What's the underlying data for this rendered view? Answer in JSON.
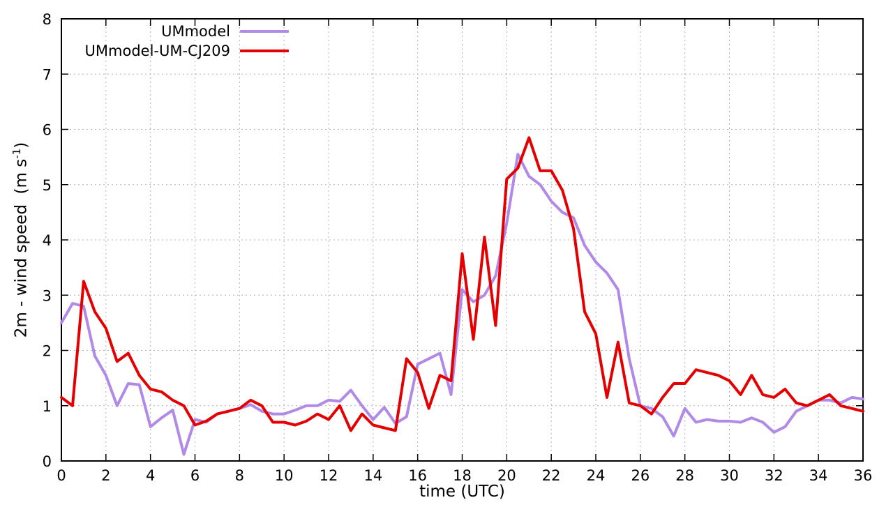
{
  "chart_data": {
    "type": "line",
    "title": "",
    "xlabel": "time (UTC)",
    "ylabel_prefix": "2m - wind speed  (m s",
    "ylabel_sup": "-1",
    "ylabel_suffix": ")",
    "xlim": [
      0,
      36
    ],
    "ylim": [
      0,
      8
    ],
    "xticks": [
      0,
      2,
      4,
      6,
      8,
      10,
      12,
      14,
      16,
      18,
      20,
      22,
      24,
      26,
      28,
      30,
      32,
      34,
      36
    ],
    "yticks": [
      0,
      1,
      2,
      3,
      4,
      5,
      6,
      7,
      8
    ],
    "grid": true,
    "grid_color": "#b0b0b0",
    "axis_color": "#000000",
    "legend_position": "top-left",
    "x_start": 0,
    "x_step": 0.5,
    "series": [
      {
        "name": "UMmodel",
        "color": "#b18ae8",
        "values": [
          2.5,
          2.85,
          2.8,
          1.9,
          1.55,
          1.0,
          1.4,
          1.38,
          0.62,
          0.78,
          0.92,
          0.12,
          0.75,
          0.7,
          0.85,
          0.9,
          0.95,
          1.02,
          0.9,
          0.85,
          0.85,
          0.92,
          1.0,
          1.0,
          1.1,
          1.08,
          1.28,
          1.0,
          0.75,
          0.97,
          0.68,
          0.8,
          1.75,
          1.85,
          1.95,
          1.2,
          3.1,
          2.88,
          3.0,
          3.35,
          4.3,
          5.55,
          5.15,
          5.0,
          4.7,
          4.5,
          4.4,
          3.9,
          3.6,
          3.4,
          3.1,
          1.85,
          1.0,
          0.95,
          0.8,
          0.45,
          0.95,
          0.7,
          0.75,
          0.72,
          0.72,
          0.7,
          0.78,
          0.7,
          0.52,
          0.62,
          0.9,
          1.0,
          1.1,
          1.1,
          1.05,
          1.15,
          1.12
        ]
      },
      {
        "name": "UMmodel-UM-CJ209",
        "color": "#e40000",
        "values": [
          1.15,
          1.0,
          3.25,
          2.7,
          2.4,
          1.8,
          1.95,
          1.55,
          1.3,
          1.25,
          1.1,
          1.0,
          0.65,
          0.72,
          0.85,
          0.9,
          0.95,
          1.1,
          1.0,
          0.7,
          0.7,
          0.65,
          0.72,
          0.85,
          0.75,
          1.0,
          0.55,
          0.85,
          0.65,
          0.6,
          0.55,
          1.85,
          1.6,
          0.95,
          1.55,
          1.45,
          3.75,
          2.2,
          4.05,
          2.45,
          5.1,
          5.3,
          5.85,
          5.25,
          5.25,
          4.9,
          4.2,
          2.7,
          2.3,
          1.15,
          2.15,
          1.05,
          1.0,
          0.85,
          1.15,
          1.4,
          1.4,
          1.65,
          1.6,
          1.55,
          1.45,
          1.2,
          1.55,
          1.2,
          1.15,
          1.3,
          1.05,
          1.0,
          1.1,
          1.2,
          1.0,
          0.95,
          0.9
        ]
      }
    ]
  }
}
